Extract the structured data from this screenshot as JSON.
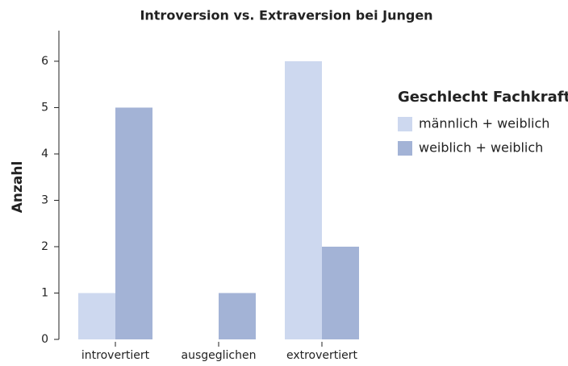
{
  "chart_data": {
    "type": "bar",
    "title": "Introversion vs. Extraversion bei Jungen",
    "y_label": "Anzahl",
    "legend_title": "Geschlecht Fachkraft",
    "categories": [
      "introvertiert",
      "ausgeglichen",
      "extrovertiert"
    ],
    "series": [
      {
        "name": "männlich + weiblich",
        "color": "#cdd8ef",
        "values": [
          1,
          0,
          6
        ]
      },
      {
        "name": "weiblich + weiblich",
        "color": "#a3b3d6",
        "values": [
          5,
          1,
          2
        ]
      }
    ],
    "ylim": [
      0,
      6.66
    ],
    "yticks": [
      0,
      1,
      2,
      3,
      4,
      5,
      6
    ],
    "legend": "right"
  }
}
